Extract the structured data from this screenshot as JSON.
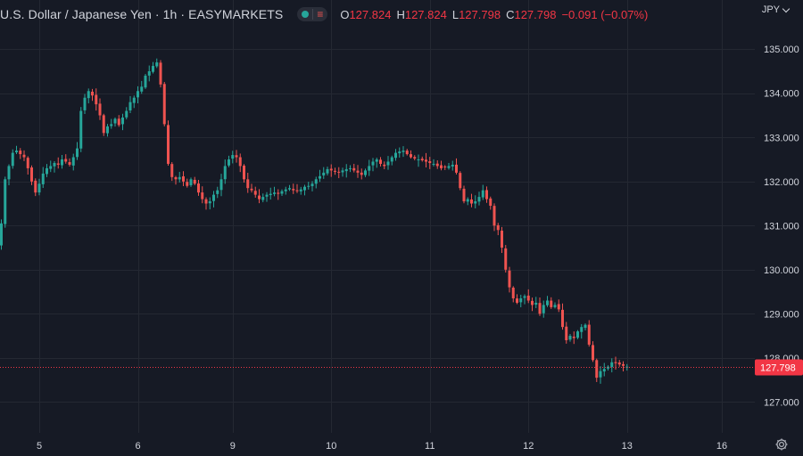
{
  "header": {
    "symbol_title": "U.S. Dollar / Japanese Yen · 1h · EASYMARKETS",
    "ohlc": {
      "o_label": "O",
      "o_value": "127.824",
      "h_label": "H",
      "h_value": "127.824",
      "l_label": "L",
      "l_value": "127.798",
      "c_label": "C",
      "c_value": "127.798",
      "change": "−0.091 (−0.07%)"
    },
    "currency": "JPY"
  },
  "icons": {
    "status_dot": "market-open-dot-icon",
    "indicator": "equals-icon",
    "currency_menu": "chevron-down-icon",
    "settings": "gear-icon"
  },
  "colors": {
    "background": "#161a25",
    "grid": "#242832",
    "up": "#26a69a",
    "down": "#ef5350",
    "text": "#d1d4dc",
    "last_price_line": "#f23645"
  },
  "chart_data": {
    "type": "candlestick",
    "y_ticks": [
      "135.000",
      "134.000",
      "133.000",
      "132.000",
      "131.000",
      "130.000",
      "129.000",
      "128.000",
      "127.000"
    ],
    "y_tick_values": [
      135,
      134,
      133,
      132,
      131,
      130,
      129,
      128,
      127
    ],
    "ylim": [
      126.3,
      135.55
    ],
    "x_ticks": [
      {
        "label": "5",
        "index": 10
      },
      {
        "label": "6",
        "index": 36
      },
      {
        "label": "9",
        "index": 61
      },
      {
        "label": "10",
        "index": 87
      },
      {
        "label": "11",
        "index": 113
      },
      {
        "label": "12",
        "index": 139
      },
      {
        "label": "13",
        "index": 165
      },
      {
        "label": "16",
        "index": 190
      }
    ],
    "last_price": 127.798,
    "last_price_label": "127.798",
    "closes": [
      131.05,
      132.05,
      132.35,
      132.65,
      132.7,
      132.62,
      132.55,
      132.3,
      132.0,
      131.75,
      131.95,
      132.18,
      132.3,
      132.35,
      132.42,
      132.38,
      132.5,
      132.45,
      132.38,
      132.55,
      132.75,
      133.6,
      133.9,
      134.05,
      133.95,
      133.75,
      133.5,
      133.1,
      133.25,
      133.3,
      133.42,
      133.28,
      133.45,
      133.6,
      133.8,
      133.9,
      134.05,
      134.15,
      134.4,
      134.5,
      134.62,
      134.7,
      134.2,
      133.3,
      132.4,
      132.1,
      132.05,
      132.1,
      132.0,
      131.9,
      132.05,
      131.95,
      131.75,
      131.6,
      131.5,
      131.55,
      131.7,
      131.8,
      132.05,
      132.35,
      132.5,
      132.6,
      132.55,
      132.35,
      132.05,
      131.85,
      131.8,
      131.7,
      131.6,
      131.65,
      131.7,
      131.72,
      131.75,
      131.72,
      131.78,
      131.82,
      131.85,
      131.8,
      131.78,
      131.82,
      131.88,
      131.9,
      131.95,
      132.05,
      132.12,
      132.2,
      132.28,
      132.25,
      132.22,
      132.2,
      132.25,
      132.28,
      132.3,
      132.25,
      132.2,
      132.15,
      132.25,
      132.35,
      132.45,
      132.5,
      132.4,
      132.35,
      132.45,
      132.55,
      132.65,
      132.68,
      132.7,
      132.62,
      132.55,
      132.52,
      132.5,
      132.48,
      132.45,
      132.42,
      132.4,
      132.35,
      132.3,
      132.32,
      132.35,
      132.38,
      132.2,
      131.85,
      131.55,
      131.6,
      131.5,
      131.55,
      131.65,
      131.8,
      131.6,
      131.45,
      131.0,
      130.9,
      130.5,
      130.0,
      129.6,
      129.35,
      129.25,
      129.35,
      129.4,
      129.3,
      129.2,
      129.25,
      129.0,
      129.2,
      129.3,
      129.15,
      129.2,
      129.1,
      128.7,
      128.4,
      128.5,
      128.45,
      128.6,
      128.7,
      128.75,
      128.3,
      127.95,
      127.55,
      127.7,
      127.75,
      127.8,
      127.9,
      127.88,
      127.85,
      127.82,
      127.8
    ]
  }
}
